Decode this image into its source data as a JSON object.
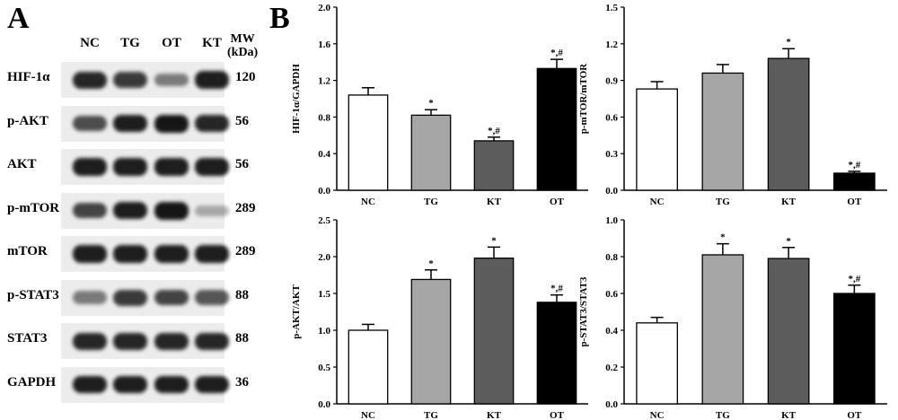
{
  "panel_labels": {
    "a": "A",
    "b": "B"
  },
  "blot": {
    "lanes": [
      "NC",
      "TG",
      "OT",
      "KT"
    ],
    "mw_header": [
      "MW",
      "(kDa)"
    ],
    "rows": [
      {
        "protein": "HIF-1α",
        "mw": "120",
        "intensity": [
          0.9,
          0.8,
          0.45,
          0.95
        ]
      },
      {
        "protein": "p-AKT",
        "mw": "56",
        "intensity": [
          0.7,
          0.95,
          1.0,
          0.9
        ]
      },
      {
        "protein": "AKT",
        "mw": "56",
        "intensity": [
          0.95,
          0.95,
          0.95,
          0.95
        ]
      },
      {
        "protein": "p-mTOR",
        "mw": "289",
        "intensity": [
          0.75,
          0.95,
          1.0,
          0.2
        ]
      },
      {
        "protein": "mTOR",
        "mw": "289",
        "intensity": [
          0.95,
          0.95,
          0.95,
          0.95
        ]
      },
      {
        "protein": "p-STAT3",
        "mw": "88",
        "intensity": [
          0.45,
          0.8,
          0.75,
          0.65
        ]
      },
      {
        "protein": "STAT3",
        "mw": "88",
        "intensity": [
          0.9,
          0.9,
          0.9,
          0.9
        ]
      },
      {
        "protein": "GAPDH",
        "mw": "36",
        "intensity": [
          0.95,
          0.95,
          0.95,
          0.95
        ]
      }
    ]
  },
  "chart_data": [
    {
      "type": "bar",
      "ylabel": "HIF-1α/GAPDH",
      "categories": [
        "NC",
        "TG",
        "KT",
        "OT"
      ],
      "values": [
        1.04,
        0.82,
        0.54,
        1.33
      ],
      "errors": [
        0.08,
        0.06,
        0.04,
        0.1
      ],
      "annotations": [
        "",
        "*",
        "*,#",
        "*,#"
      ],
      "ylim": [
        0,
        2.0
      ],
      "ticks": [
        "0.0",
        "0.4",
        "0.8",
        "1.2",
        "1.6",
        "2.0"
      ],
      "colors": [
        "#ffffff",
        "#a6a6a6",
        "#5c5c5c",
        "#000000"
      ]
    },
    {
      "type": "bar",
      "ylabel": "p-mTOR/mTOR",
      "categories": [
        "NC",
        "TG",
        "KT",
        "OT"
      ],
      "values": [
        0.83,
        0.96,
        1.08,
        0.14
      ],
      "errors": [
        0.06,
        0.07,
        0.08,
        0.015
      ],
      "annotations": [
        "",
        "",
        "*",
        "*,#"
      ],
      "ylim": [
        0,
        1.5
      ],
      "ticks": [
        "0.0",
        "0.3",
        "0.6",
        "0.9",
        "1.2",
        "1.5"
      ],
      "colors": [
        "#ffffff",
        "#a6a6a6",
        "#5c5c5c",
        "#000000"
      ]
    },
    {
      "type": "bar",
      "ylabel": "p-AKT/AKT",
      "categories": [
        "NC",
        "TG",
        "KT",
        "OT"
      ],
      "values": [
        1.0,
        1.69,
        1.98,
        1.38
      ],
      "errors": [
        0.08,
        0.13,
        0.15,
        0.1
      ],
      "annotations": [
        "",
        "*",
        "*",
        "*,#"
      ],
      "ylim": [
        0,
        2.5
      ],
      "ticks": [
        "0.0",
        "0.5",
        "1.0",
        "1.5",
        "2.0",
        "2.5"
      ],
      "colors": [
        "#ffffff",
        "#a6a6a6",
        "#5c5c5c",
        "#000000"
      ]
    },
    {
      "type": "bar",
      "ylabel": "p-STAT3/STAT3",
      "categories": [
        "NC",
        "TG",
        "KT",
        "OT"
      ],
      "values": [
        0.44,
        0.81,
        0.79,
        0.6
      ],
      "errors": [
        0.03,
        0.06,
        0.06,
        0.045
      ],
      "annotations": [
        "",
        "*",
        "*",
        "*,#"
      ],
      "ylim": [
        0,
        1.0
      ],
      "ticks": [
        "0.0",
        "0.2",
        "0.4",
        "0.6",
        "0.8",
        "1.0"
      ],
      "colors": [
        "#ffffff",
        "#a6a6a6",
        "#5c5c5c",
        "#000000"
      ]
    }
  ]
}
